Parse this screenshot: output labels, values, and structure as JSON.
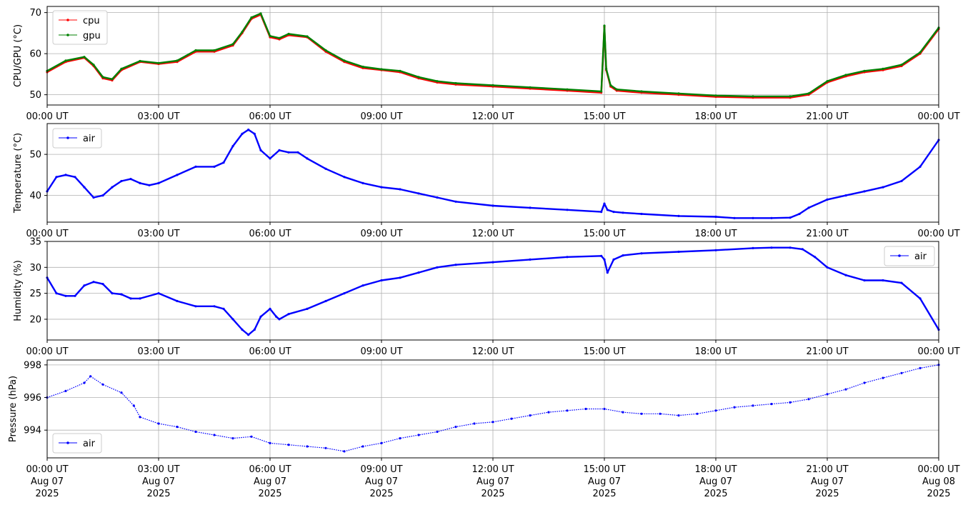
{
  "chart_data": [
    {
      "type": "line",
      "ylabel": "CPU/GPU (°C)",
      "ylim": [
        47.5,
        71.5
      ],
      "yticks": [
        50,
        60,
        70
      ],
      "xlim": [
        "2025-08-07 00:00",
        "2025-08-08 00:00"
      ],
      "grid": true,
      "legend": "top-left",
      "series": [
        {
          "name": "cpu",
          "color": "#ff0000",
          "x": [
            "00:00",
            "00:30",
            "01:00",
            "01:15",
            "01:30",
            "01:45",
            "02:00",
            "02:30",
            "03:00",
            "03:30",
            "04:00",
            "04:30",
            "05:00",
            "05:15",
            "05:30",
            "05:45",
            "06:00",
            "06:15",
            "06:30",
            "07:00",
            "07:30",
            "08:00",
            "08:30",
            "09:00",
            "09:30",
            "10:00",
            "10:30",
            "11:00",
            "12:00",
            "13:00",
            "14:00",
            "14:55",
            "15:00",
            "15:03",
            "15:10",
            "15:20",
            "16:00",
            "17:00",
            "18:00",
            "19:00",
            "20:00",
            "20:30",
            "21:00",
            "21:30",
            "22:00",
            "22:30",
            "23:00",
            "23:30",
            "24:00"
          ],
          "values": [
            55.5,
            58,
            59,
            57,
            54,
            53.5,
            56,
            58,
            57.5,
            58,
            60.5,
            60.5,
            62,
            65,
            68.5,
            69.5,
            64,
            63.5,
            64.5,
            64,
            60.5,
            58,
            56.5,
            56,
            55.5,
            54,
            53,
            52.5,
            52,
            51.5,
            51,
            50.5,
            66.5,
            56,
            52,
            51,
            50.5,
            50,
            49.5,
            49.3,
            49.3,
            50,
            53,
            54.5,
            55.5,
            56,
            57,
            60,
            66
          ]
        },
        {
          "name": "gpu",
          "color": "#008000",
          "x": [
            "00:00",
            "00:30",
            "01:00",
            "01:15",
            "01:30",
            "01:45",
            "02:00",
            "02:30",
            "03:00",
            "03:30",
            "04:00",
            "04:30",
            "05:00",
            "05:15",
            "05:30",
            "05:45",
            "06:00",
            "06:15",
            "06:30",
            "07:00",
            "07:30",
            "08:00",
            "08:30",
            "09:00",
            "09:30",
            "10:00",
            "10:30",
            "11:00",
            "12:00",
            "13:00",
            "14:00",
            "14:55",
            "15:00",
            "15:03",
            "15:10",
            "15:20",
            "16:00",
            "17:00",
            "18:00",
            "19:00",
            "20:00",
            "20:30",
            "21:00",
            "21:30",
            "22:00",
            "22:30",
            "23:00",
            "23:30",
            "24:00"
          ],
          "values": [
            55.8,
            58.3,
            59.2,
            57.3,
            54.3,
            53.8,
            56.3,
            58.2,
            57.7,
            58.3,
            60.8,
            60.8,
            62.3,
            65.3,
            68.8,
            69.8,
            64.3,
            63.8,
            64.8,
            64.2,
            60.8,
            58.3,
            56.8,
            56.2,
            55.8,
            54.3,
            53.3,
            52.8,
            52.3,
            51.8,
            51.3,
            50.8,
            66.8,
            56.3,
            52.3,
            51.3,
            50.8,
            50.3,
            49.8,
            49.6,
            49.6,
            50.3,
            53.3,
            54.8,
            55.8,
            56.3,
            57.3,
            60.3,
            66.3
          ]
        }
      ]
    },
    {
      "type": "line",
      "ylabel": "Temperature (°C)",
      "ylim": [
        33.5,
        57.5
      ],
      "yticks": [
        40,
        50
      ],
      "xlim": [
        "2025-08-07 00:00",
        "2025-08-08 00:00"
      ],
      "grid": true,
      "legend": "top-left",
      "series": [
        {
          "name": "air",
          "color": "#0000ff",
          "x": [
            "00:00",
            "00:15",
            "00:30",
            "00:45",
            "01:00",
            "01:15",
            "01:30",
            "01:45",
            "02:00",
            "02:15",
            "02:30",
            "02:45",
            "03:00",
            "03:30",
            "04:00",
            "04:30",
            "04:45",
            "05:00",
            "05:15",
            "05:25",
            "05:35",
            "05:45",
            "06:00",
            "06:15",
            "06:30",
            "06:45",
            "07:00",
            "07:30",
            "08:00",
            "08:30",
            "09:00",
            "09:30",
            "10:00",
            "10:30",
            "11:00",
            "12:00",
            "13:00",
            "14:00",
            "14:55",
            "15:00",
            "15:05",
            "15:15",
            "15:30",
            "16:00",
            "17:00",
            "18:00",
            "18:30",
            "19:00",
            "19:30",
            "20:00",
            "20:15",
            "20:30",
            "21:00",
            "21:30",
            "22:00",
            "22:30",
            "23:00",
            "23:30",
            "24:00"
          ],
          "values": [
            41,
            44.5,
            45,
            44.5,
            42,
            39.5,
            40,
            42,
            43.5,
            44,
            43,
            42.5,
            43,
            45,
            47,
            47,
            48,
            52,
            55,
            56,
            55,
            51,
            49,
            51,
            50.5,
            50.5,
            49,
            46.5,
            44.5,
            43,
            42,
            41.5,
            40.5,
            39.5,
            38.5,
            37.5,
            37,
            36.5,
            36,
            38,
            36.5,
            36,
            35.8,
            35.5,
            35,
            34.8,
            34.5,
            34.5,
            34.5,
            34.6,
            35.5,
            37,
            39,
            40,
            41,
            42,
            43.5,
            47,
            53.5
          ]
        }
      ]
    },
    {
      "type": "line",
      "ylabel": "Humidity (%)",
      "ylim": [
        16,
        35
      ],
      "yticks": [
        20,
        25,
        30,
        35
      ],
      "xlim": [
        "2025-08-07 00:00",
        "2025-08-08 00:00"
      ],
      "grid": true,
      "legend": "top-right",
      "series": [
        {
          "name": "air",
          "color": "#0000ff",
          "x": [
            "00:00",
            "00:15",
            "00:30",
            "00:45",
            "01:00",
            "01:15",
            "01:30",
            "01:45",
            "02:00",
            "02:15",
            "02:30",
            "03:00",
            "03:30",
            "04:00",
            "04:30",
            "04:45",
            "05:00",
            "05:15",
            "05:25",
            "05:35",
            "05:45",
            "06:00",
            "06:10",
            "06:15",
            "06:30",
            "07:00",
            "07:30",
            "08:00",
            "08:30",
            "09:00",
            "09:30",
            "10:00",
            "10:30",
            "11:00",
            "12:00",
            "13:00",
            "14:00",
            "14:55",
            "15:00",
            "15:05",
            "15:15",
            "15:30",
            "16:00",
            "17:00",
            "18:00",
            "19:00",
            "19:30",
            "20:00",
            "20:20",
            "20:40",
            "21:00",
            "21:30",
            "22:00",
            "22:30",
            "23:00",
            "23:30",
            "24:00"
          ],
          "values": [
            28,
            25,
            24.5,
            24.5,
            26.5,
            27.2,
            26.8,
            25,
            24.8,
            24,
            24,
            25,
            23.5,
            22.5,
            22.5,
            22,
            20,
            18,
            17,
            18,
            20.5,
            22,
            20.5,
            20,
            21,
            22,
            23.5,
            25,
            26.5,
            27.5,
            28,
            29,
            30,
            30.5,
            31,
            31.5,
            32,
            32.2,
            31.5,
            29,
            31.5,
            32.3,
            32.7,
            33,
            33.3,
            33.7,
            33.8,
            33.8,
            33.5,
            32,
            30,
            28.5,
            27.5,
            27.5,
            27,
            24,
            18
          ]
        }
      ]
    },
    {
      "type": "scatter",
      "ylabel": "Pressure (hPa)",
      "ylim": [
        992.3,
        998.3
      ],
      "yticks": [
        994,
        996,
        998
      ],
      "xlim": [
        "2025-08-07 00:00",
        "2025-08-08 00:00"
      ],
      "xticks": [
        "00:00 UT\nAug 07\n2025",
        "03:00 UT\nAug 07\n2025",
        "06:00 UT\nAug 07\n2025",
        "09:00 UT\nAug 07\n2025",
        "12:00 UT\nAug 07\n2025",
        "15:00 UT\nAug 07\n2025",
        "18:00 UT\nAug 07\n2025",
        "21:00 UT\nAug 07\n2025",
        "00:00 UT\nAug 08\n2025"
      ],
      "grid": true,
      "legend": "bottom-left",
      "series": [
        {
          "name": "air",
          "color": "#0000ff",
          "x": [
            "00:00",
            "00:30",
            "01:00",
            "01:10",
            "01:30",
            "02:00",
            "02:20",
            "02:30",
            "03:00",
            "03:30",
            "04:00",
            "04:30",
            "05:00",
            "05:30",
            "06:00",
            "06:30",
            "07:00",
            "07:30",
            "08:00",
            "08:30",
            "09:00",
            "09:30",
            "10:00",
            "10:30",
            "11:00",
            "11:30",
            "12:00",
            "12:30",
            "13:00",
            "13:30",
            "14:00",
            "14:30",
            "15:00",
            "15:30",
            "16:00",
            "16:30",
            "17:00",
            "17:30",
            "18:00",
            "18:30",
            "19:00",
            "19:30",
            "20:00",
            "20:30",
            "21:00",
            "21:30",
            "22:00",
            "22:30",
            "23:00",
            "23:30",
            "24:00"
          ],
          "values": [
            996,
            996.4,
            996.9,
            997.3,
            996.8,
            996.3,
            995.5,
            994.8,
            994.4,
            994.2,
            993.9,
            993.7,
            993.5,
            993.6,
            993.2,
            993.1,
            993,
            992.9,
            992.7,
            993,
            993.2,
            993.5,
            993.7,
            993.9,
            994.2,
            994.4,
            994.5,
            994.7,
            994.9,
            995.1,
            995.2,
            995.3,
            995.3,
            995.1,
            995,
            995,
            994.9,
            995,
            995.2,
            995.4,
            995.5,
            995.6,
            995.7,
            995.9,
            996.2,
            996.5,
            996.9,
            997.2,
            997.5,
            997.8,
            998
          ]
        }
      ]
    }
  ],
  "xtick_labels": [
    "00:00 UT",
    "03:00 UT",
    "06:00 UT",
    "09:00 UT",
    "12:00 UT",
    "15:00 UT",
    "18:00 UT",
    "21:00 UT",
    "00:00 UT"
  ],
  "xtick_dates": [
    "Aug 07",
    "Aug 07",
    "Aug 07",
    "Aug 07",
    "Aug 07",
    "Aug 07",
    "Aug 07",
    "Aug 07",
    "Aug 08"
  ],
  "xtick_years": [
    "2025",
    "2025",
    "2025",
    "2025",
    "2025",
    "2025",
    "2025",
    "2025",
    "2025"
  ]
}
